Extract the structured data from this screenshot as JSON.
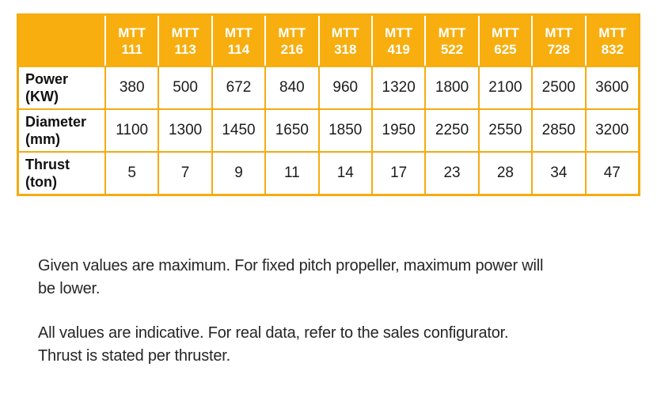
{
  "table": {
    "corner_label": "",
    "columns": [
      {
        "line1": "MTT",
        "line2": "111"
      },
      {
        "line1": "MTT",
        "line2": "113"
      },
      {
        "line1": "MTT",
        "line2": "114"
      },
      {
        "line1": "MTT",
        "line2": "216"
      },
      {
        "line1": "MTT",
        "line2": "318"
      },
      {
        "line1": "MTT",
        "line2": "419"
      },
      {
        "line1": "MTT",
        "line2": "522"
      },
      {
        "line1": "MTT",
        "line2": "625"
      },
      {
        "line1": "MTT",
        "line2": "728"
      },
      {
        "line1": "MTT",
        "line2": "832"
      }
    ],
    "rows": [
      {
        "label1": "Power",
        "label2": "(KW)",
        "values": [
          "380",
          "500",
          "672",
          "840",
          "960",
          "1320",
          "1800",
          "2100",
          "2500",
          "3600"
        ]
      },
      {
        "label1": "Diameter",
        "label2": "(mm)",
        "values": [
          "1100",
          "1300",
          "1450",
          "1650",
          "1850",
          "1950",
          "2250",
          "2550",
          "2850",
          "3200"
        ]
      },
      {
        "label1": "Thrust",
        "label2": "(ton)",
        "values": [
          "5",
          "7",
          "9",
          "11",
          "14",
          "17",
          "23",
          "28",
          "34",
          "47"
        ]
      }
    ]
  },
  "notes": {
    "p1_line1": "Given values are maximum. For fixed pitch propeller, maximum power will",
    "p1_line2": "be lower.",
    "p2_line1": "All values are indicative. For real data, refer to the sales configurator.",
    "p2_line2": "Thrust is stated per thruster."
  },
  "colors": {
    "header_bg": "#F7AE0E",
    "border": "#F5AB10",
    "header_text": "#FFFFFF",
    "body_text": "#1C1C1C"
  }
}
